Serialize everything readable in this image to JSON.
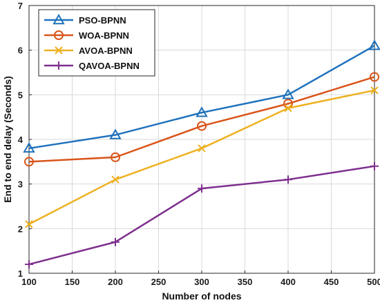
{
  "chart_data": {
    "type": "line",
    "title": "",
    "xlabel": "Number of nodes",
    "ylabel": "End to end delay (Seconds)",
    "x": [
      100,
      200,
      300,
      400,
      500
    ],
    "xlim": [
      100,
      500
    ],
    "ylim": [
      1,
      7
    ],
    "xticks": [
      "100",
      "150",
      "200",
      "250",
      "300",
      "350",
      "400",
      "450",
      "500"
    ],
    "yticks": [
      "1",
      "2",
      "3",
      "4",
      "5",
      "6",
      "7"
    ],
    "grid": true,
    "legend_position": "top-left",
    "series": [
      {
        "name": "PSO-BPNN",
        "values": [
          3.8,
          4.1,
          4.6,
          5.0,
          6.1
        ],
        "color": "#1f72bd",
        "marker": "triangle"
      },
      {
        "name": "WOA-BPNN",
        "values": [
          3.5,
          3.6,
          4.3,
          4.8,
          5.4
        ],
        "color": "#d9541a",
        "marker": "circle"
      },
      {
        "name": "AVOA-BPNN",
        "values": [
          2.1,
          3.1,
          3.8,
          4.7,
          5.1
        ],
        "color": "#edb120",
        "marker": "x"
      },
      {
        "name": "QAVOA-BPNN",
        "values": [
          1.2,
          1.7,
          2.9,
          3.1,
          3.4
        ],
        "color": "#7e2f8e",
        "marker": "plus"
      }
    ]
  }
}
